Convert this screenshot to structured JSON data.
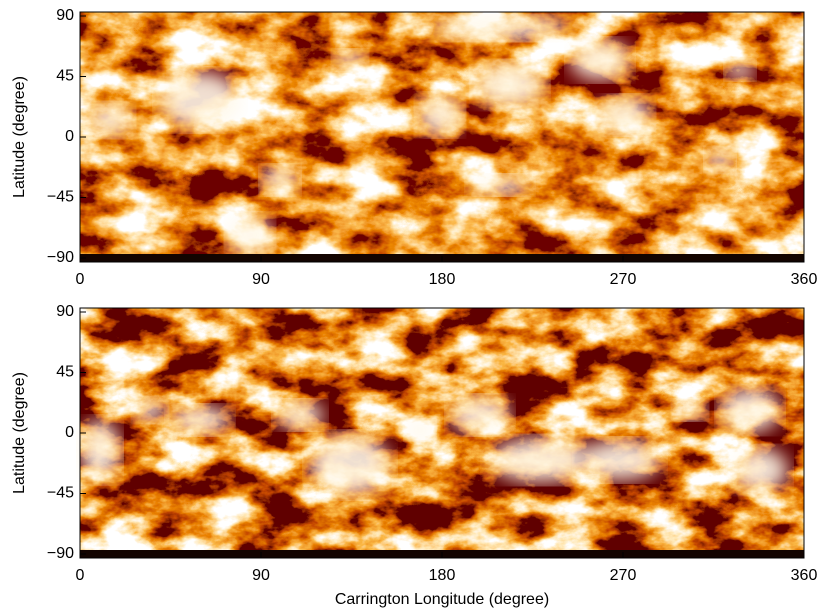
{
  "chart_data": [
    {
      "type": "map",
      "ylabel": "Latitude (degree)",
      "xlim": [
        0,
        360
      ],
      "xticks": [
        0,
        90,
        180,
        270,
        360
      ],
      "ylim": [
        -90,
        90
      ],
      "yticks": [
        {
          "value": -90,
          "label": "−90"
        },
        {
          "value": -45,
          "label": "−45"
        },
        0,
        45,
        90
      ]
    },
    {
      "type": "map",
      "ylabel": "Latitude (degree)",
      "xlabel": "Carrington Longitude (degree)",
      "xlim": [
        0,
        360
      ],
      "xticks": [
        0,
        90,
        180,
        270,
        360
      ],
      "ylim": [
        -90,
        90
      ],
      "yticks": [
        {
          "value": -90,
          "label": "−90"
        },
        {
          "value": -45,
          "label": "−45"
        },
        0,
        45,
        90
      ]
    }
  ]
}
